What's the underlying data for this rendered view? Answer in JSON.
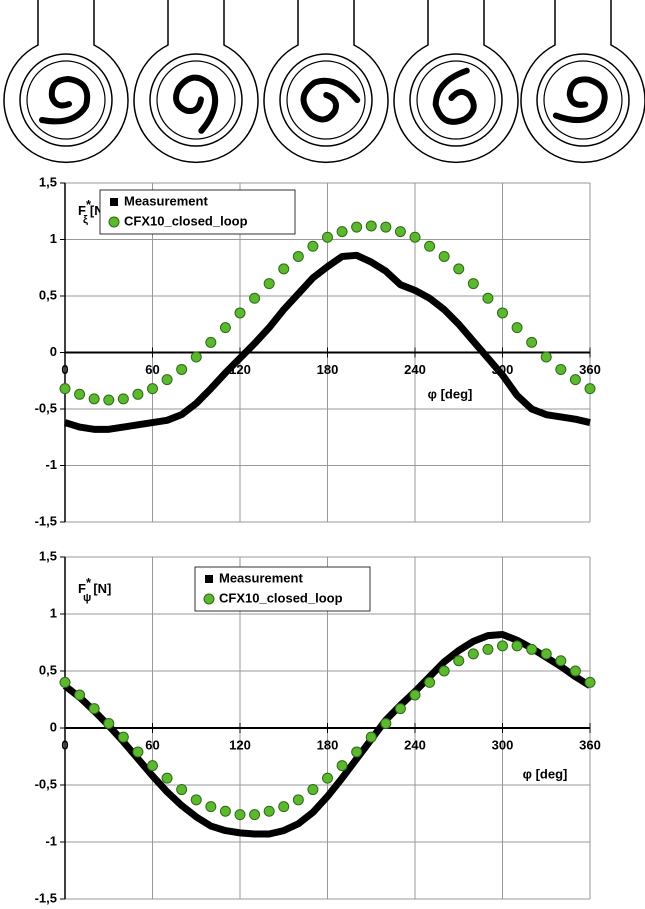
{
  "chart_data": [
    {
      "type": "line",
      "x": [
        0,
        10,
        20,
        30,
        40,
        50,
        60,
        70,
        80,
        90,
        100,
        110,
        120,
        130,
        140,
        150,
        160,
        170,
        180,
        190,
        200,
        210,
        220,
        230,
        240,
        250,
        260,
        270,
        280,
        290,
        300,
        310,
        320,
        330,
        340,
        350,
        360
      ],
      "series": [
        {
          "name": "Measurement",
          "color": "#000000",
          "marker": "line",
          "values": [
            -0.62,
            -0.66,
            -0.68,
            -0.68,
            -0.66,
            -0.64,
            -0.62,
            -0.6,
            -0.55,
            -0.45,
            -0.32,
            -0.18,
            -0.05,
            0.08,
            0.22,
            0.38,
            0.52,
            0.66,
            0.76,
            0.85,
            0.86,
            0.8,
            0.72,
            0.6,
            0.55,
            0.48,
            0.38,
            0.25,
            0.1,
            -0.05,
            -0.2,
            -0.38,
            -0.5,
            -0.55,
            -0.57,
            -0.59,
            -0.62
          ]
        },
        {
          "name": "CFX10_closed_loop",
          "color": "#5cb82e",
          "marker": "circle",
          "values": [
            -0.32,
            -0.37,
            -0.41,
            -0.42,
            -0.41,
            -0.37,
            -0.32,
            -0.24,
            -0.15,
            -0.04,
            0.09,
            0.22,
            0.35,
            0.48,
            0.61,
            0.74,
            0.85,
            0.94,
            1.02,
            1.07,
            1.11,
            1.12,
            1.11,
            1.07,
            1.02,
            0.94,
            0.85,
            0.74,
            0.61,
            0.48,
            0.35,
            0.22,
            0.09,
            -0.04,
            -0.15,
            -0.24,
            -0.32
          ]
        }
      ],
      "xlim": [
        0,
        360
      ],
      "xticks": [
        0,
        60,
        120,
        180,
        240,
        300,
        360
      ],
      "ylim": [
        -1.5,
        1.5
      ],
      "yticks": [
        {
          "value": -1.5,
          "label": "-1,5"
        },
        -1,
        {
          "value": -0.5,
          "label": "-0,5"
        },
        0,
        {
          "value": 0.5,
          "label": "0,5"
        },
        1,
        {
          "value": 1.5,
          "label": "1,5"
        }
      ],
      "grid": true,
      "x_label": "φ [deg]",
      "y_label": {
        "text": "F",
        "sub": "ξ",
        "sup": "*",
        "unit": "[N]"
      }
    },
    {
      "type": "line",
      "x": [
        0,
        10,
        20,
        30,
        40,
        50,
        60,
        70,
        80,
        90,
        100,
        110,
        120,
        130,
        140,
        150,
        160,
        170,
        180,
        190,
        200,
        210,
        220,
        230,
        240,
        250,
        260,
        270,
        280,
        290,
        300,
        310,
        320,
        330,
        340,
        350,
        360
      ],
      "series": [
        {
          "name": "Measurement",
          "color": "#000000",
          "marker": "line",
          "values": [
            0.37,
            0.27,
            0.15,
            0.02,
            -0.12,
            -0.27,
            -0.42,
            -0.56,
            -0.68,
            -0.78,
            -0.86,
            -0.9,
            -0.92,
            -0.93,
            -0.93,
            -0.9,
            -0.84,
            -0.74,
            -0.6,
            -0.44,
            -0.27,
            -0.1,
            0.07,
            0.2,
            0.32,
            0.45,
            0.58,
            0.68,
            0.76,
            0.81,
            0.82,
            0.77,
            0.7,
            0.62,
            0.54,
            0.45,
            0.37
          ]
        },
        {
          "name": "CFX10_closed_loop",
          "color": "#5cb82e",
          "marker": "circle",
          "values": [
            0.4,
            0.29,
            0.17,
            0.04,
            -0.08,
            -0.21,
            -0.33,
            -0.44,
            -0.54,
            -0.63,
            -0.69,
            -0.73,
            -0.76,
            -0.76,
            -0.73,
            -0.69,
            -0.63,
            -0.54,
            -0.44,
            -0.33,
            -0.21,
            -0.08,
            0.04,
            0.17,
            0.29,
            0.4,
            0.5,
            0.59,
            0.65,
            0.69,
            0.72,
            0.72,
            0.69,
            0.65,
            0.59,
            0.5,
            0.4
          ]
        }
      ],
      "xlim": [
        0,
        360
      ],
      "xticks": [
        0,
        60,
        120,
        180,
        240,
        300,
        360
      ],
      "ylim": [
        -1.5,
        1.5
      ],
      "yticks": [
        {
          "value": -1.5,
          "label": "-1,5"
        },
        -1,
        {
          "value": -0.5,
          "label": "-0,5"
        },
        0,
        {
          "value": 0.5,
          "label": "0,5"
        },
        1,
        {
          "value": 1.5,
          "label": "1,5"
        }
      ],
      "grid": true,
      "x_label": "φ [deg]",
      "y_label": {
        "text": "F",
        "sub": "ψ",
        "sup": "*",
        "unit": "[N]"
      }
    }
  ]
}
